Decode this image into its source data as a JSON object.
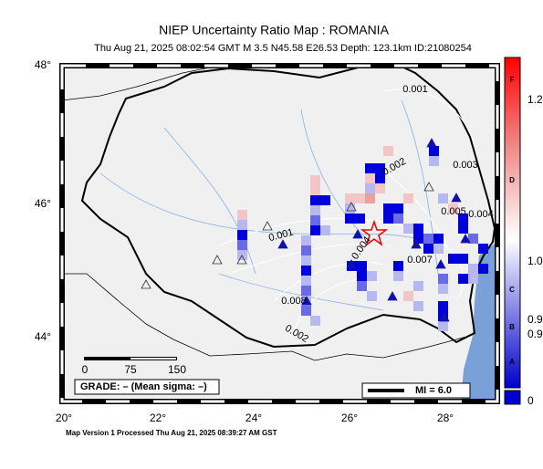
{
  "header": {
    "title": "NIEP Uncertainty Ratio Map : ROMANIA",
    "subtitle": "Thu Aug 21, 2025 08:02:54 GMT   M 3.5   N45.58 E26.53   Depth: 123.1km   ID:21080254"
  },
  "axes": {
    "lat_labels": [
      "48°",
      "46°",
      "44°"
    ],
    "lon_labels": [
      "20°",
      "22°",
      "24°",
      "26°",
      "28°"
    ]
  },
  "contour_labels": [
    "0.001",
    "0.002",
    "0.003",
    "0.005",
    "0.004",
    "0.001",
    "0.004",
    "0.007",
    "0.008",
    "0.002"
  ],
  "scale_bar": {
    "labels": [
      "0",
      "75",
      "150"
    ]
  },
  "grade": "GRADE: – (Mean sigma: –)",
  "magnitude_legend": "MI = 6.0",
  "colorbar": {
    "grades": [
      "F",
      "D",
      "C",
      "B",
      "A"
    ],
    "ticks": [
      "1.2",
      "1.0",
      "0.9",
      "0.9",
      "0"
    ]
  },
  "footer": "Map Version 1 Processed Thu Aug 21, 2025 08:39:27 AM GST"
}
